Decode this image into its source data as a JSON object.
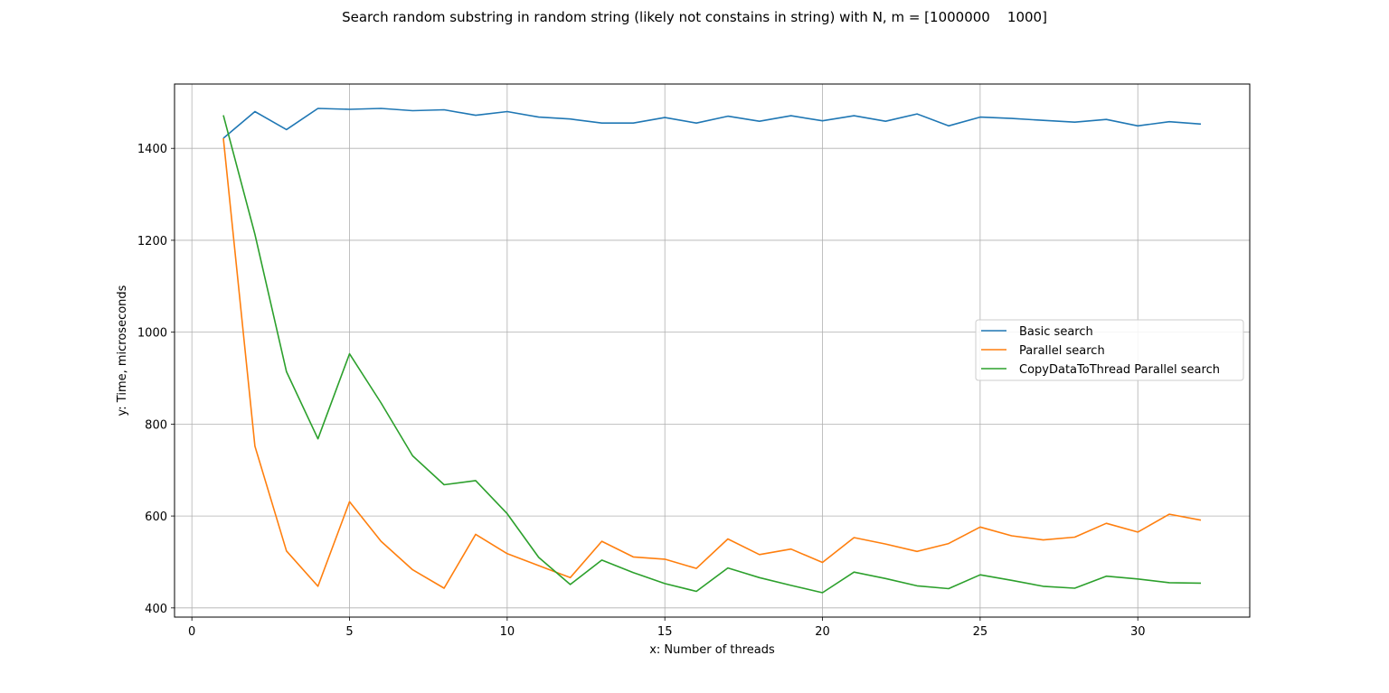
{
  "chart_data": {
    "type": "line",
    "title": "Search random substring in random string (likely not constains in string) with N, m = [1000000    1000]",
    "xlabel": "x: Number of threads",
    "ylabel": "y: Time, microseconds",
    "xlim": [
      -0.55,
      33.55
    ],
    "ylim": [
      380,
      1540
    ],
    "xticks": [
      0,
      5,
      10,
      15,
      20,
      25,
      30
    ],
    "yticks": [
      400,
      600,
      800,
      1000,
      1200,
      1400
    ],
    "grid": true,
    "legend_position": "center-right",
    "x": [
      1,
      2,
      3,
      4,
      5,
      6,
      7,
      8,
      9,
      10,
      11,
      12,
      13,
      14,
      15,
      16,
      17,
      18,
      19,
      20,
      21,
      22,
      23,
      24,
      25,
      26,
      27,
      28,
      29,
      30,
      31,
      32
    ],
    "series": [
      {
        "name": "Basic search",
        "color": "#1f77b4",
        "values": [
          1422,
          1480,
          1441,
          1487,
          1485,
          1487,
          1482,
          1484,
          1472,
          1480,
          1468,
          1464,
          1455,
          1455,
          1467,
          1455,
          1470,
          1459,
          1471,
          1460,
          1471,
          1459,
          1475,
          1449,
          1468,
          1465,
          1461,
          1457,
          1463,
          1449,
          1458,
          1453
        ]
      },
      {
        "name": "Parallel search",
        "color": "#ff7f0e",
        "values": [
          1422,
          752,
          524,
          447,
          631,
          545,
          483,
          443,
          560,
          518,
          492,
          466,
          545,
          511,
          506,
          486,
          550,
          516,
          528,
          499,
          553,
          539,
          523,
          540,
          576,
          557,
          548,
          554,
          584,
          565,
          604,
          591
        ]
      },
      {
        "name": "CopyDataToThread Parallel search",
        "color": "#2ca02c",
        "values": [
          1472,
          1213,
          914,
          768,
          953,
          846,
          731,
          668,
          677,
          605,
          510,
          451,
          504,
          477,
          453,
          436,
          487,
          466,
          449,
          433,
          478,
          464,
          448,
          442,
          472,
          460,
          447,
          443,
          469,
          463,
          455,
          454
        ]
      }
    ]
  }
}
